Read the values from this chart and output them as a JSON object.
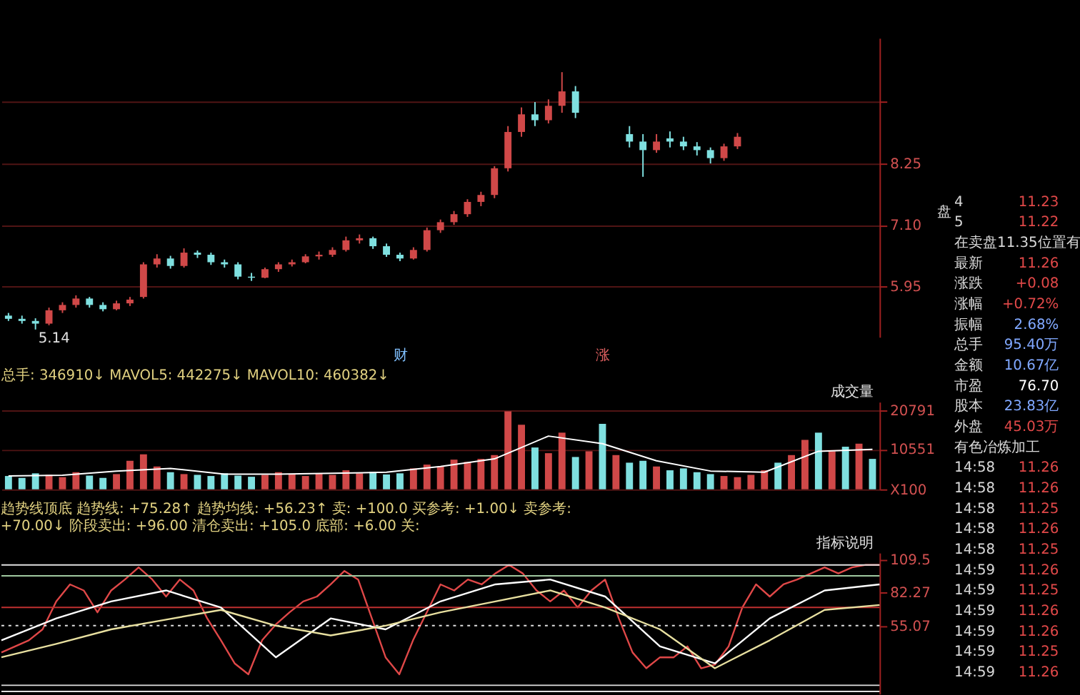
{
  "chart_data": [
    {
      "type": "candlestick",
      "categories": [
        null,
        null,
        null,
        null,
        null,
        null,
        null,
        null,
        null,
        null,
        null,
        null,
        null,
        null,
        null,
        null,
        null,
        null,
        null,
        null,
        null,
        null,
        null,
        null,
        null,
        null,
        null,
        null,
        null,
        null,
        null,
        null,
        null,
        null,
        null,
        null,
        null,
        null,
        null,
        null,
        null,
        null,
        null,
        null,
        null,
        null,
        null,
        null,
        null,
        null,
        null,
        null,
        null,
        null,
        null,
        null,
        null,
        null,
        null,
        null,
        null,
        null,
        null,
        null,
        null
      ],
      "ohlc": [
        [
          5.4,
          5.45,
          5.3,
          5.34
        ],
        [
          5.34,
          5.4,
          5.25,
          5.3
        ],
        [
          5.3,
          5.35,
          5.14,
          5.25
        ],
        [
          5.25,
          5.55,
          5.22,
          5.5
        ],
        [
          5.5,
          5.65,
          5.45,
          5.6
        ],
        [
          5.6,
          5.78,
          5.55,
          5.72
        ],
        [
          5.72,
          5.75,
          5.55,
          5.6
        ],
        [
          5.6,
          5.65,
          5.48,
          5.52
        ],
        [
          5.52,
          5.68,
          5.5,
          5.63
        ],
        [
          5.63,
          5.75,
          5.58,
          5.7
        ],
        [
          5.75,
          6.4,
          5.72,
          6.36
        ],
        [
          6.36,
          6.55,
          6.3,
          6.47
        ],
        [
          6.47,
          6.52,
          6.28,
          6.33
        ],
        [
          6.33,
          6.66,
          6.3,
          6.58
        ],
        [
          6.58,
          6.62,
          6.48,
          6.54
        ],
        [
          6.54,
          6.58,
          6.35,
          6.4
        ],
        [
          6.4,
          6.45,
          6.3,
          6.36
        ],
        [
          6.36,
          6.4,
          6.08,
          6.13
        ],
        [
          6.13,
          6.2,
          6.05,
          6.11
        ],
        [
          6.11,
          6.3,
          6.1,
          6.27
        ],
        [
          6.27,
          6.4,
          6.22,
          6.36
        ],
        [
          6.36,
          6.45,
          6.32,
          6.4
        ],
        [
          6.4,
          6.55,
          6.38,
          6.51
        ],
        [
          6.51,
          6.6,
          6.45,
          6.54
        ],
        [
          6.54,
          6.68,
          6.5,
          6.63
        ],
        [
          6.63,
          6.88,
          6.6,
          6.81
        ],
        [
          6.81,
          6.92,
          6.75,
          6.85
        ],
        [
          6.85,
          6.88,
          6.65,
          6.7
        ],
        [
          6.7,
          6.75,
          6.5,
          6.54
        ],
        [
          6.54,
          6.58,
          6.42,
          6.47
        ],
        [
          6.47,
          6.68,
          6.45,
          6.63
        ],
        [
          6.63,
          7.05,
          6.6,
          7.0
        ],
        [
          7.0,
          7.2,
          6.95,
          7.15
        ],
        [
          7.15,
          7.36,
          7.1,
          7.3
        ],
        [
          7.3,
          7.58,
          7.25,
          7.53
        ],
        [
          7.53,
          7.72,
          7.45,
          7.66
        ],
        [
          7.66,
          8.2,
          7.6,
          8.16
        ],
        [
          8.16,
          8.95,
          8.1,
          8.84
        ],
        [
          8.84,
          9.3,
          8.75,
          9.17
        ],
        [
          9.17,
          9.4,
          8.95,
          9.06
        ],
        [
          9.06,
          9.45,
          9.0,
          9.33
        ],
        [
          9.33,
          9.96,
          9.2,
          9.6
        ],
        [
          9.6,
          9.7,
          9.1,
          9.2
        ],
        null,
        null,
        null,
        [
          8.8,
          8.95,
          8.55,
          8.66
        ],
        [
          8.66,
          8.8,
          8.0,
          8.5
        ],
        [
          8.5,
          8.8,
          8.45,
          8.66
        ],
        [
          8.72,
          8.85,
          8.55,
          8.66
        ],
        [
          8.66,
          8.75,
          8.5,
          8.57
        ],
        [
          8.57,
          8.65,
          8.4,
          8.5
        ],
        [
          8.5,
          8.55,
          8.25,
          8.35
        ],
        [
          8.35,
          8.62,
          8.3,
          8.57
        ],
        [
          8.57,
          8.82,
          8.52,
          8.75
        ],
        null,
        null,
        null,
        null,
        null,
        null,
        null,
        null,
        null,
        null
      ],
      "colors": [
        "#7fe0e0",
        "#7fe0e0",
        "#7fe0e0",
        "#d04848",
        "#d04848",
        "#d04848",
        "#7fe0e0",
        "#7fe0e0",
        "#d04848",
        "#d04848",
        "#d04848",
        "#d04848",
        "#7fe0e0",
        "#d04848",
        "#7fe0e0",
        "#7fe0e0",
        "#7fe0e0",
        "#7fe0e0",
        "#7fe0e0",
        "#d04848",
        "#d04848",
        "#d04848",
        "#d04848",
        "#d04848",
        "#d04848",
        "#d04848",
        "#d04848",
        "#7fe0e0",
        "#7fe0e0",
        "#7fe0e0",
        "#d04848",
        "#d04848",
        "#d04848",
        "#d04848",
        "#d04848",
        "#d04848",
        "#d04848",
        "#d04848",
        "#d04848",
        "#7fe0e0",
        "#d04848",
        "#d04848",
        "#7fe0e0",
        null,
        null,
        null,
        "#7fe0e0",
        "#7fe0e0",
        "#d04848",
        "#7fe0e0",
        "#7fe0e0",
        "#7fe0e0",
        "#7fe0e0",
        "#d04848",
        "#d04848",
        null,
        null,
        null,
        null,
        null,
        null,
        null,
        null,
        null,
        null
      ],
      "ylim": [
        5.0,
        10.6
      ],
      "yticks": [
        5.95,
        {
          "value": 7.1,
          "label": "7.10"
        },
        8.25,
        {
          "value": 9.4,
          "label": null
        }
      ],
      "grid": "y",
      "tick_labels": "y",
      "annotations": [
        "5.14",
        "财",
        "涨"
      ]
    },
    {
      "type": "bar",
      "title": "总手: 346910↓ MAVOL5: 442275↓ MAVOL10: 460382↓",
      "categories": [
        null,
        null,
        null,
        null,
        null,
        null,
        null,
        null,
        null,
        null,
        null,
        null,
        null,
        null,
        null,
        null,
        null,
        null,
        null,
        null,
        null,
        null,
        null,
        null,
        null,
        null,
        null,
        null,
        null,
        null,
        null,
        null,
        null,
        null,
        null,
        null,
        null,
        null,
        null,
        null,
        null,
        null,
        null,
        null,
        null,
        null,
        null,
        null,
        null,
        null,
        null,
        null,
        null,
        null,
        null,
        null,
        null,
        null,
        null,
        null,
        null,
        null,
        null,
        null,
        null
      ],
      "series": [
        {
          "type": "bar",
          "values": [
            3500,
            3000,
            4200,
            3800,
            3200,
            4500,
            3600,
            3000,
            4000,
            7500,
            9200,
            6000,
            4500,
            4000,
            3800,
            3500,
            4200,
            3600,
            3300,
            3800,
            4500,
            4000,
            3500,
            4200,
            3800,
            5000,
            4200,
            4600,
            3900,
            4200,
            5500,
            6500,
            6000,
            7800,
            7200,
            8000,
            9000,
            20500,
            17000,
            11000,
            9500,
            14900,
            8500,
            10000,
            17200,
            9000,
            7000,
            7500,
            6000,
            5000,
            5500,
            4500,
            4000,
            3500,
            3200,
            3800,
            5000,
            7000,
            9000,
            13000,
            14900,
            10000,
            11200,
            12000,
            8000
          ],
          "colors": [
            "#7fe0e0",
            "#7fe0e0",
            "#7fe0e0",
            "#d04848",
            "#d04848",
            "#d04848",
            "#7fe0e0",
            "#7fe0e0",
            "#d04848",
            "#d04848",
            "#d04848",
            "#d04848",
            "#7fe0e0",
            "#d04848",
            "#7fe0e0",
            "#7fe0e0",
            "#7fe0e0",
            "#7fe0e0",
            "#7fe0e0",
            "#d04848",
            "#d04848",
            "#d04848",
            "#d04848",
            "#d04848",
            "#d04848",
            "#d04848",
            "#d04848",
            "#7fe0e0",
            "#7fe0e0",
            "#7fe0e0",
            "#d04848",
            "#d04848",
            "#d04848",
            "#d04848",
            "#d04848",
            "#d04848",
            "#d04848",
            "#d04848",
            "#d04848",
            "#7fe0e0",
            "#d04848",
            "#d04848",
            "#7fe0e0",
            "#d04848",
            "#7fe0e0",
            "#d04848",
            "#7fe0e0",
            "#7fe0e0",
            "#d04848",
            "#7fe0e0",
            "#7fe0e0",
            "#7fe0e0",
            "#7fe0e0",
            "#d04848",
            "#d04848",
            "#d04848",
            "#d04848",
            "#7fe0e0",
            "#d04848",
            "#d04848",
            "#7fe0e0",
            "#d04848",
            "#7fe0e0",
            "#d04848",
            "#7fe0e0"
          ]
        },
        {
          "type": "line",
          "color": "#ffffff",
          "values": [
            3500,
            null,
            null,
            null,
            3700,
            null,
            null,
            null,
            4800,
            null,
            null,
            null,
            5500,
            null,
            null,
            null,
            4000,
            null,
            null,
            null,
            4000,
            null,
            null,
            null,
            4200,
            null,
            null,
            null,
            4500,
            null,
            null,
            null,
            6000,
            null,
            null,
            null,
            8000,
            null,
            null,
            null,
            14000,
            null,
            null,
            null,
            12000,
            null,
            null,
            null,
            7500,
            null,
            null,
            null,
            4800,
            null,
            null,
            null,
            4500,
            null,
            null,
            null,
            10000,
            null,
            null,
            null,
            10500
          ]
        }
      ],
      "ylim": [
        0,
        23000
      ],
      "yticks": [
        {
          "value": 0,
          "label": "X100"
        },
        10551,
        20791
      ],
      "grid": "y",
      "tick_labels": "y",
      "annotations": [
        "成交量"
      ]
    },
    {
      "type": "line",
      "title": "趋势线顶底 趋势线: +75.28↑ 趋势均线: +56.23↑ 卖: +100.0 买参考: +1.00↓ 卖参考: +70.00↓ 阶段卖出: +96.00 清仓卖出: +105.0 底部: +6.00 关:",
      "categories": [
        null,
        null,
        null,
        null,
        null,
        null,
        null,
        null,
        null,
        null,
        null,
        null,
        null,
        null,
        null,
        null,
        null,
        null,
        null,
        null,
        null,
        null,
        null,
        null,
        null,
        null,
        null,
        null,
        null,
        null,
        null,
        null,
        null,
        null,
        null,
        null,
        null,
        null,
        null,
        null,
        null,
        null,
        null,
        null,
        null,
        null,
        null,
        null,
        null,
        null,
        null,
        null,
        null,
        null,
        null,
        null,
        null,
        null,
        null,
        null,
        null,
        null,
        null,
        null,
        null
      ],
      "series": [
        {
          "color": "#e04848",
          "values": [
            33,
            38,
            43,
            52,
            75,
            89,
            84,
            66,
            84,
            93,
            103,
            93,
            79,
            93,
            84,
            61,
            43,
            24,
            15,
            43,
            56,
            66,
            75,
            79,
            89,
            100,
            93,
            61,
            29,
            15,
            43,
            66,
            89,
            84,
            93,
            89,
            98,
            105,
            98,
            84,
            75,
            84,
            70,
            84,
            93,
            61,
            33,
            20,
            29,
            29,
            38,
            20,
            23,
            38,
            70,
            89,
            79,
            89,
            93,
            98,
            103,
            98,
            103,
            105,
            105
          ]
        },
        {
          "color": "#ffffff",
          "values": [
            43,
            null,
            null,
            null,
            61,
            null,
            null,
            null,
            75,
            null,
            null,
            null,
            84,
            null,
            null,
            null,
            70,
            null,
            null,
            null,
            29,
            null,
            null,
            null,
            61,
            null,
            null,
            null,
            52,
            null,
            null,
            null,
            75,
            null,
            null,
            null,
            89,
            null,
            null,
            null,
            93,
            null,
            null,
            null,
            79,
            null,
            null,
            null,
            38,
            null,
            null,
            null,
            24,
            null,
            null,
            null,
            61,
            null,
            null,
            null,
            84,
            null,
            null,
            null,
            89
          ]
        },
        {
          "color": "#e8e0a0",
          "values": [
            29,
            null,
            null,
            null,
            40,
            null,
            null,
            null,
            52,
            null,
            null,
            null,
            60,
            null,
            null,
            null,
            68,
            null,
            null,
            null,
            55,
            null,
            null,
            null,
            47,
            null,
            null,
            null,
            55,
            null,
            null,
            null,
            66,
            null,
            null,
            null,
            75,
            null,
            null,
            null,
            84,
            null,
            null,
            null,
            70,
            null,
            null,
            null,
            52,
            null,
            null,
            null,
            20,
            null,
            null,
            null,
            43,
            null,
            null,
            null,
            68,
            null,
            null,
            null,
            72
          ]
        }
      ],
      "ylim": [
        -1,
        115
      ],
      "yticks": [
        55.07,
        82.27,
        109.5
      ],
      "tick_labels": "y",
      "line_style": "solid",
      "marker": "none",
      "ref_lines": [
        {
          "axis": "y",
          "value": 105,
          "color": "#e0e0e0",
          "line_style": "solid"
        },
        {
          "axis": "y",
          "value": 96,
          "color": "#a0c8a0",
          "line_style": "solid"
        },
        {
          "axis": "y",
          "value": 70,
          "color": "#c03030",
          "line_style": "solid"
        },
        {
          "axis": "y",
          "value": 55.07,
          "color": "#e0e0e0",
          "line_style": "dotted"
        },
        {
          "axis": "y",
          "value": 6,
          "color": "#e0e0e0",
          "line_style": "solid"
        },
        {
          "axis": "y",
          "value": 1,
          "color": "#e0e0e0",
          "line_style": "solid"
        }
      ],
      "annotations": [
        "指标说明"
      ]
    },
    {
      "type": "other",
      "categories": [
        "4",
        "5",
        "在卖盘11.35位置有",
        "最新",
        "涨跌",
        "涨幅",
        "振幅",
        "总手",
        "金额",
        "市盈",
        "股本",
        "外盘",
        "有色冶炼加工",
        "14:58",
        "14:58",
        "14:58",
        "14:58",
        "14:58",
        "14:59",
        "14:59",
        "14:59",
        "14:59",
        "14:59",
        "14:59"
      ],
      "value_labels": [
        "11.23",
        "11.22",
        null,
        "11.26",
        "+0.08",
        "+0.72%",
        "2.68%",
        "95.40万",
        "10.67亿",
        "76.70",
        "23.83亿",
        "45.03万",
        null,
        "11.26",
        "11.26",
        "11.25",
        "11.26",
        "11.25",
        "11.26",
        "11.25",
        "11.26",
        "11.26",
        "11.25",
        "11.26"
      ],
      "colors": [
        "#e04848",
        "#e04848",
        null,
        "#e04848",
        "#e04848",
        "#e04848",
        "#80a8ff",
        "#80a8ff",
        "#80a8ff",
        "#ffffff",
        "#80a8ff",
        "#e04848",
        null,
        "#e04848",
        "#e04848",
        "#e04848",
        "#e04848",
        "#e04848",
        "#e04848",
        "#e04848",
        "#e04848",
        "#e04848",
        "#e04848",
        "#e04848"
      ],
      "annotations": [
        "盘"
      ]
    }
  ]
}
